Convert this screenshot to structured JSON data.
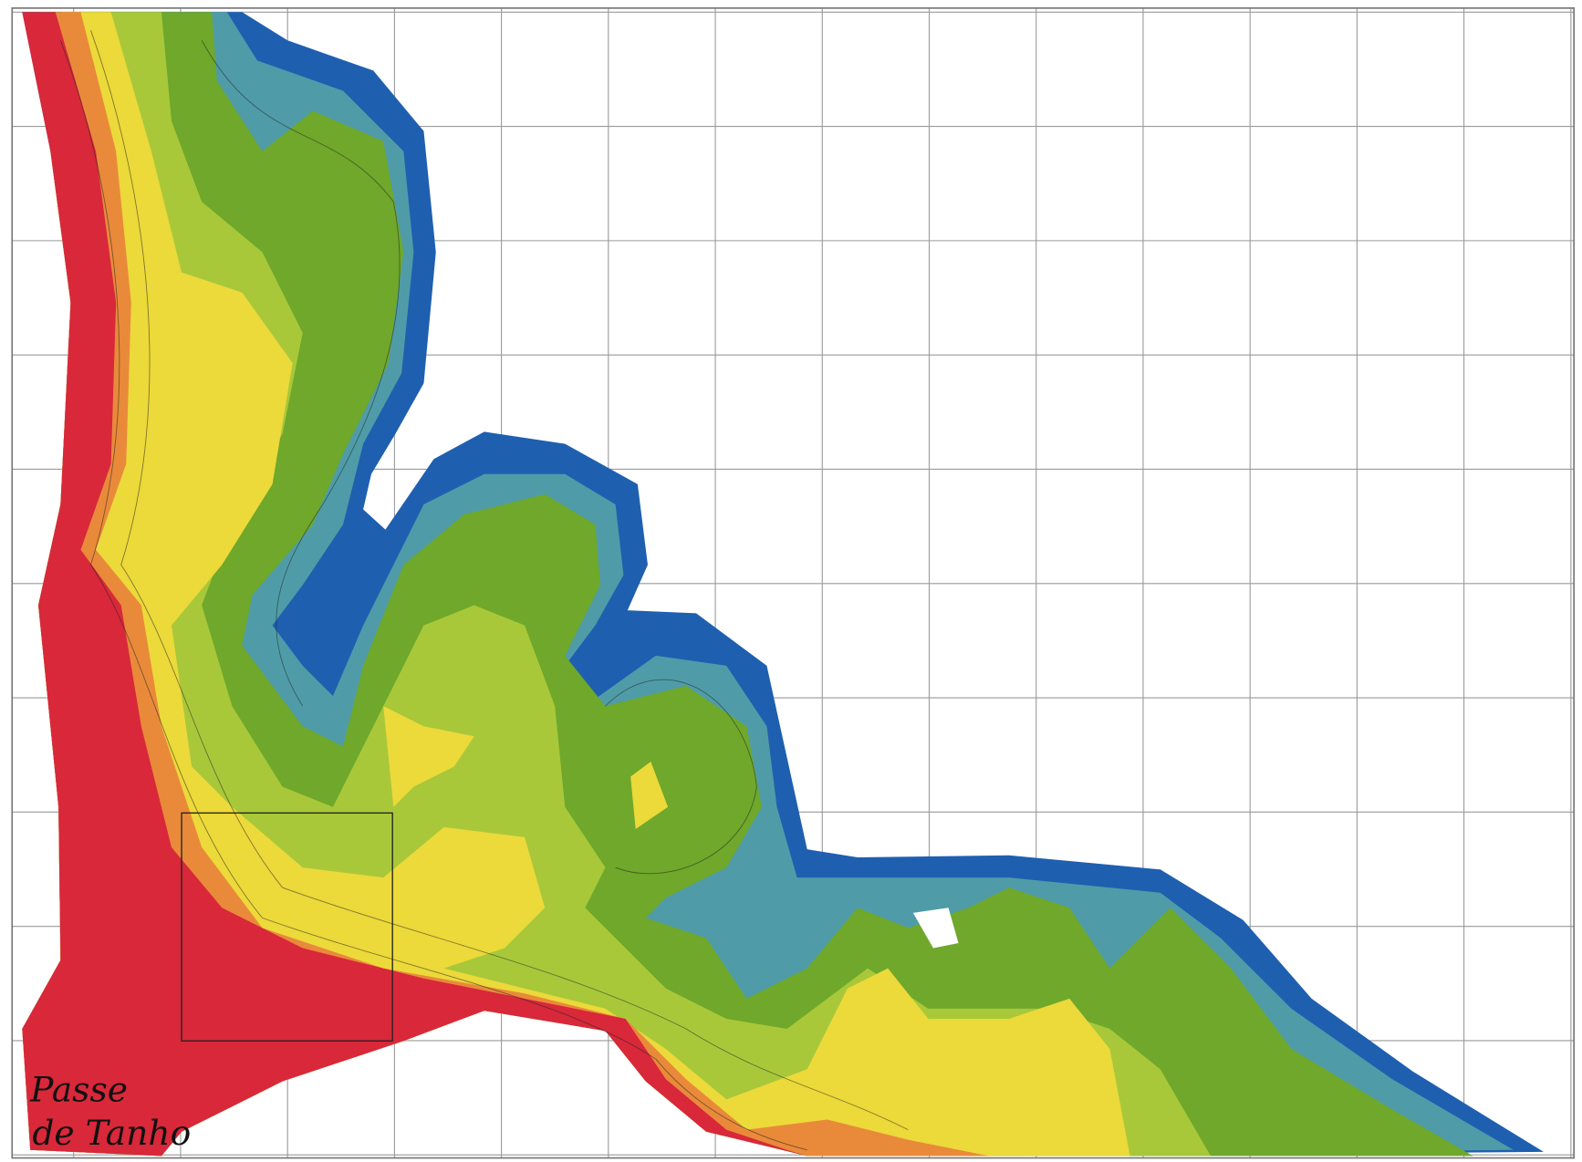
{
  "map": {
    "label": [
      "Passe",
      "de Tanho"
    ]
  }
}
